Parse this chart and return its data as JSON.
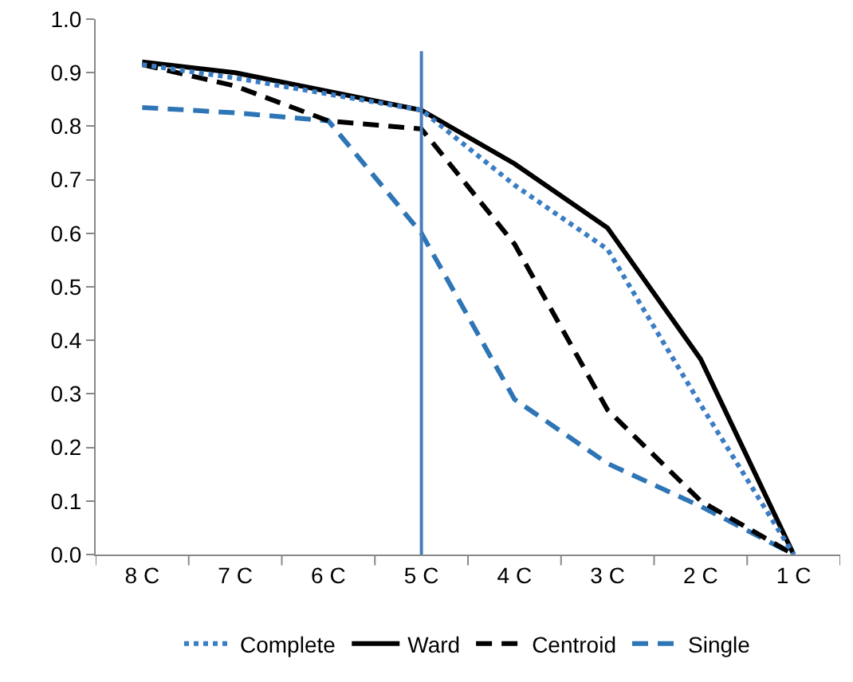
{
  "chart_data": {
    "type": "line",
    "categories": [
      "8 C",
      "7 C",
      "6 C",
      "5 C",
      "4 C",
      "3 C",
      "2 C",
      "1 C"
    ],
    "series": [
      {
        "name": "Complete",
        "color": "#3b7dc4",
        "line_style": "dotted",
        "values": [
          0.915,
          0.89,
          0.86,
          0.83,
          0.69,
          0.57,
          0.28,
          0.0
        ]
      },
      {
        "name": "Ward",
        "color": "#000000",
        "line_style": "solid",
        "values": [
          0.92,
          0.9,
          0.865,
          0.83,
          0.73,
          0.61,
          0.365,
          0.0
        ]
      },
      {
        "name": "Centroid",
        "color": "#000000",
        "line_style": "dashed",
        "values": [
          0.915,
          0.875,
          0.81,
          0.795,
          0.58,
          0.27,
          0.1,
          0.0
        ]
      },
      {
        "name": "Single",
        "color": "#2e75b6",
        "line_style": "dashed",
        "values": [
          0.835,
          0.825,
          0.81,
          0.6,
          0.29,
          0.17,
          0.09,
          0.0
        ]
      }
    ],
    "ylim": [
      0,
      1
    ],
    "yticks": [
      {
        "value": 0,
        "label": "0.0"
      },
      0.1,
      0.2,
      0.3,
      0.4,
      0.5,
      0.6,
      0.7,
      0.8,
      0.9,
      {
        "value": 1,
        "label": "1.0"
      }
    ],
    "ref_lines": [
      {
        "axis": "x",
        "value": "5 C",
        "color": "#4a7ebb"
      }
    ],
    "grid": false,
    "legend": "bottom",
    "marker": "none"
  }
}
